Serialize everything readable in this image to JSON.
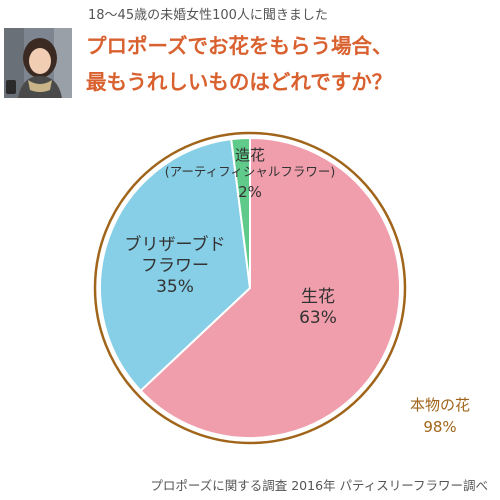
{
  "header": {
    "survey_note": "18〜45歳の未婚女性100人に聞きました",
    "question_line1": "プロポーズでお花をもらう場合、",
    "question_line2": "最もうれしいものはどれですか？"
  },
  "chart_data": {
    "type": "pie",
    "title": "プロポーズでお花をもらう場合、最もうれしいものはどれですか？",
    "slices": [
      {
        "label": "生花",
        "value": 63,
        "display": "63%",
        "color": "#f09dac"
      },
      {
        "label": "ブリザーブドフラワー",
        "display_lines": [
          "ブリザーブド",
          "フラワー"
        ],
        "value": 35,
        "display": "35%",
        "color": "#86cfe7"
      },
      {
        "label": "造花",
        "sublabel": "(アーティフィシャルフラワー)",
        "value": 2,
        "display": "2%",
        "color": "#5fca8a"
      }
    ],
    "group_annotation": {
      "label": "本物の花",
      "value": 98,
      "display": "98%",
      "color": "#a0651a"
    }
  },
  "footer": {
    "source": "プロポーズに関する調査 2016年 パティスリーフラワー調べ"
  }
}
